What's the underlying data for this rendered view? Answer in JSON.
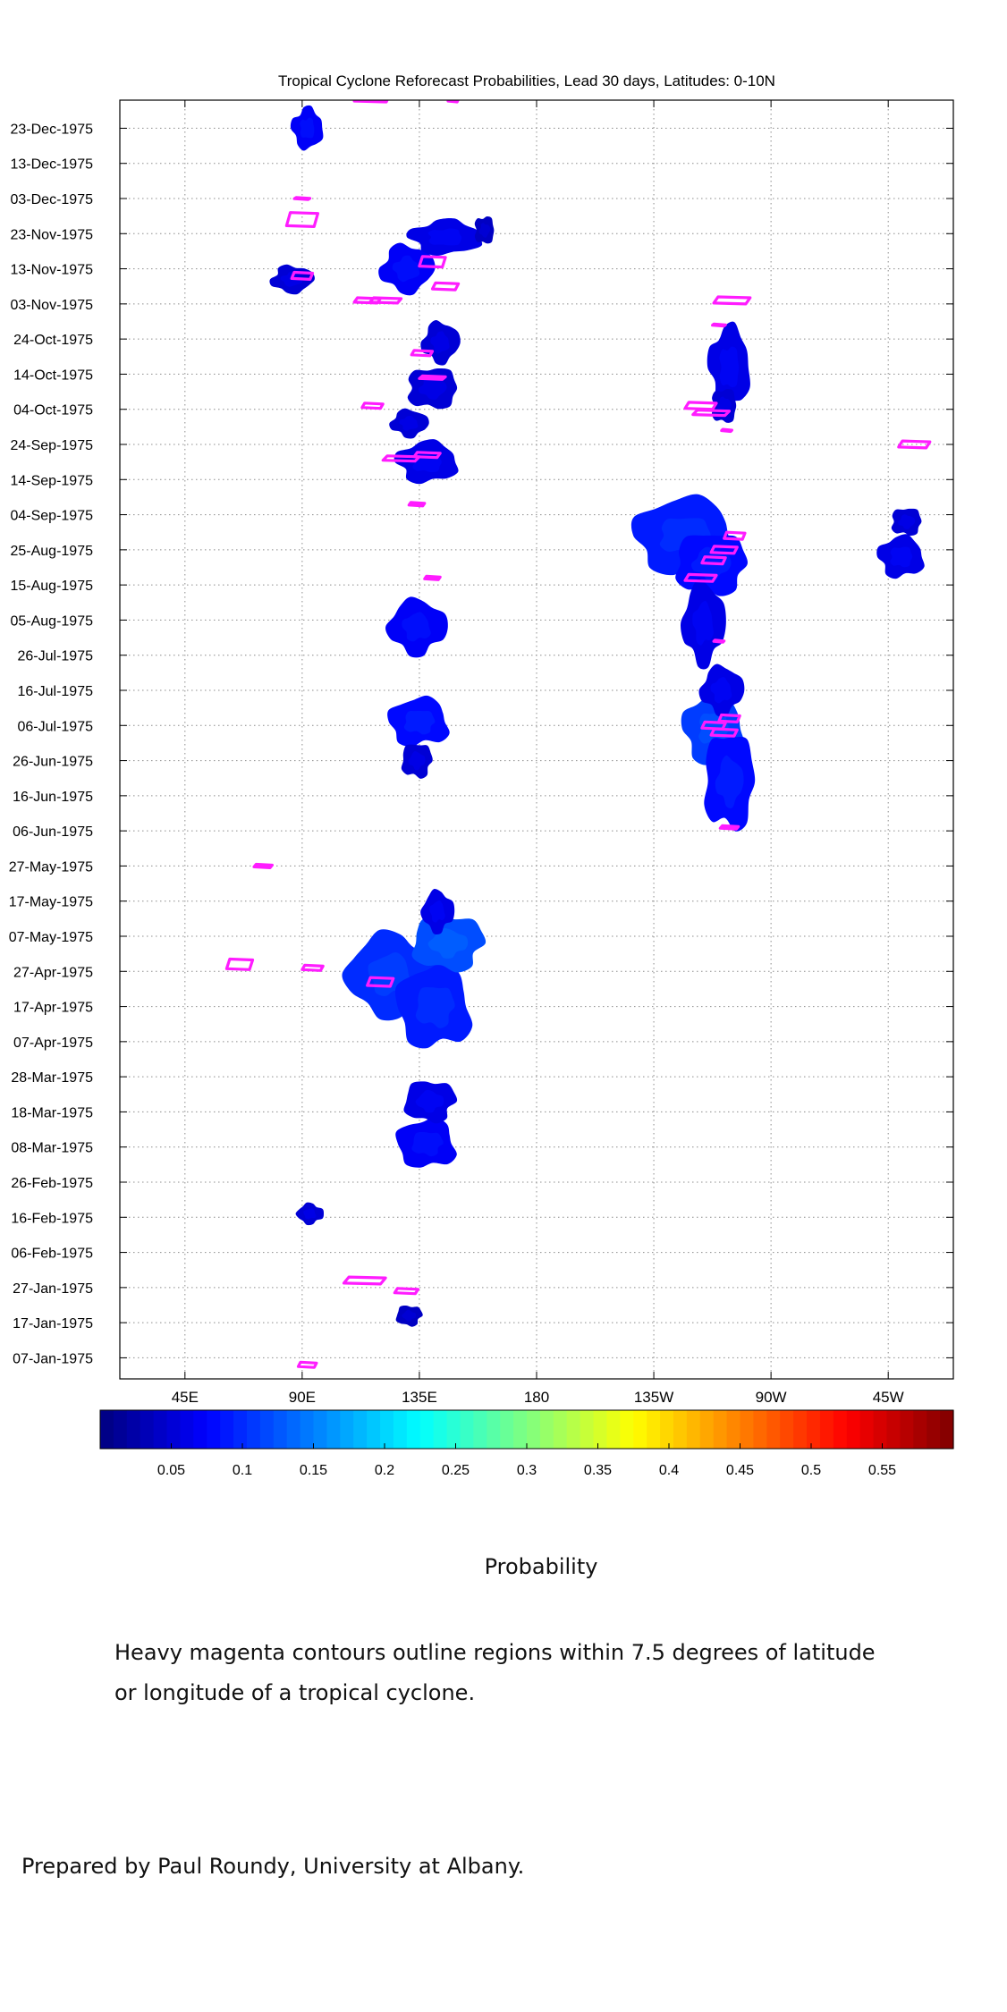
{
  "chart_data": {
    "type": "heatmap",
    "title": "Tropical Cyclone Reforecast Probabilities, Lead 30 days, Latitudes: 0-10N",
    "x_axis": {
      "quantity": "longitude",
      "range": [
        "20E",
        "20W"
      ],
      "tick_labels": [
        "45E",
        "90E",
        "135E",
        "180",
        "135W",
        "90W",
        "45W"
      ]
    },
    "y_axis": {
      "quantity": "date",
      "range": [
        "1975-01-01",
        "1975-12-31"
      ],
      "tick_labels": [
        "07-Jan-1975",
        "17-Jan-1975",
        "27-Jan-1975",
        "06-Feb-1975",
        "16-Feb-1975",
        "26-Feb-1975",
        "08-Mar-1975",
        "18-Mar-1975",
        "28-Mar-1975",
        "07-Apr-1975",
        "17-Apr-1975",
        "27-Apr-1975",
        "07-May-1975",
        "17-May-1975",
        "27-May-1975",
        "06-Jun-1975",
        "16-Jun-1975",
        "26-Jun-1975",
        "06-Jul-1975",
        "16-Jul-1975",
        "26-Jul-1975",
        "05-Aug-1975",
        "15-Aug-1975",
        "25-Aug-1975",
        "04-Sep-1975",
        "14-Sep-1975",
        "24-Sep-1975",
        "04-Oct-1975",
        "14-Oct-1975",
        "24-Oct-1975",
        "03-Nov-1975",
        "13-Nov-1975",
        "23-Nov-1975",
        "03-Dec-1975",
        "13-Dec-1975",
        "23-Dec-1975"
      ]
    },
    "grid": true,
    "colorbar": {
      "label": "Probability",
      "range": [
        0,
        0.6
      ],
      "tick_labels": [
        "0.05",
        "0.1",
        "0.15",
        "0.2",
        "0.25",
        "0.3",
        "0.35",
        "0.4",
        "0.45",
        "0.5",
        "0.55"
      ],
      "colormap": "jet"
    },
    "probability_regions": [
      {
        "lon": 131,
        "lat_day": 18,
        "d_lon": 5,
        "d_day": 3,
        "p": 0.04
      },
      {
        "lon": 93,
        "lat_day": 47,
        "d_lon": 5,
        "d_day": 3,
        "p": 0.05
      },
      {
        "lon": 138,
        "lat_day": 67,
        "d_lon": 12,
        "d_day": 7,
        "p": 0.07
      },
      {
        "lon": 139,
        "lat_day": 79,
        "d_lon": 10,
        "d_day": 6,
        "p": 0.06
      },
      {
        "lon": 124,
        "lat_day": 115,
        "d_lon": 17,
        "d_day": 12,
        "p": 0.1
      },
      {
        "lon": 141,
        "lat_day": 106,
        "d_lon": 15,
        "d_day": 12,
        "p": 0.09
      },
      {
        "lon": 146,
        "lat_day": 124,
        "d_lon": 14,
        "d_day": 8,
        "p": 0.12
      },
      {
        "lon": 142,
        "lat_day": 133,
        "d_lon": 6,
        "d_day": 6,
        "p": 0.06
      },
      {
        "lon": 135,
        "lat_day": 187,
        "d_lon": 12,
        "d_day": 7,
        "p": 0.08
      },
      {
        "lon": 134,
        "lat_day": 176,
        "d_lon": 6,
        "d_day": 5,
        "p": 0.05
      },
      {
        "lon": 134,
        "lat_day": 214,
        "d_lon": 11,
        "d_day": 8,
        "p": 0.07
      },
      {
        "lon": 237,
        "lat_day": 240,
        "d_lon": 20,
        "d_day": 11,
        "p": 0.09
      },
      {
        "lon": 247,
        "lat_day": 232,
        "d_lon": 14,
        "d_day": 9,
        "p": 0.08
      },
      {
        "lon": 244,
        "lat_day": 215,
        "d_lon": 8,
        "d_day": 12,
        "p": 0.06
      },
      {
        "lon": 248,
        "lat_day": 185,
        "d_lon": 12,
        "d_day": 10,
        "p": 0.11
      },
      {
        "lon": 254,
        "lat_day": 170,
        "d_lon": 10,
        "d_day": 14,
        "p": 0.08
      },
      {
        "lon": 251,
        "lat_day": 196,
        "d_lon": 8,
        "d_day": 7,
        "p": 0.06
      },
      {
        "lon": 320,
        "lat_day": 234,
        "d_lon": 9,
        "d_day": 6,
        "p": 0.06
      },
      {
        "lon": 322,
        "lat_day": 244,
        "d_lon": 6,
        "d_day": 4,
        "p": 0.05
      },
      {
        "lon": 131,
        "lat_day": 272,
        "d_lon": 7,
        "d_day": 4,
        "p": 0.05
      },
      {
        "lon": 138,
        "lat_day": 261,
        "d_lon": 12,
        "d_day": 6,
        "p": 0.06
      },
      {
        "lon": 140,
        "lat_day": 282,
        "d_lon": 10,
        "d_day": 6,
        "p": 0.05
      },
      {
        "lon": 143,
        "lat_day": 295,
        "d_lon": 7,
        "d_day": 6,
        "p": 0.05
      },
      {
        "lon": 254,
        "lat_day": 288,
        "d_lon": 8,
        "d_day": 12,
        "p": 0.06
      },
      {
        "lon": 252,
        "lat_day": 277,
        "d_lon": 5,
        "d_day": 5,
        "p": 0.05
      },
      {
        "lon": 130,
        "lat_day": 316,
        "d_lon": 10,
        "d_day": 7,
        "p": 0.07
      },
      {
        "lon": 145,
        "lat_day": 325,
        "d_lon": 14,
        "d_day": 5,
        "p": 0.06
      },
      {
        "lon": 160,
        "lat_day": 327,
        "d_lon": 4,
        "d_day": 4,
        "p": 0.04
      },
      {
        "lon": 86,
        "lat_day": 313,
        "d_lon": 8,
        "d_day": 4,
        "p": 0.05
      },
      {
        "lon": 92,
        "lat_day": 356,
        "d_lon": 6,
        "d_day": 6,
        "p": 0.07
      }
    ],
    "tc_contours": [
      {
        "lon": 92,
        "day": 4,
        "d_lon": 7,
        "d_day": 1.5
      },
      {
        "lon": 114,
        "day": 28,
        "d_lon": 16,
        "d_day": 2
      },
      {
        "lon": 130,
        "day": 25,
        "d_lon": 9,
        "d_day": 1.5
      },
      {
        "lon": 120,
        "day": 113,
        "d_lon": 10,
        "d_day": 2.5
      },
      {
        "lon": 94,
        "day": 117,
        "d_lon": 8,
        "d_day": 1.5
      },
      {
        "lon": 66,
        "day": 118,
        "d_lon": 10,
        "d_day": 3
      },
      {
        "lon": 75,
        "day": 146,
        "d_lon": 7,
        "d_day": 1
      },
      {
        "lon": 254,
        "day": 157,
        "d_lon": 7,
        "d_day": 1
      },
      {
        "lon": 252,
        "day": 184,
        "d_lon": 10,
        "d_day": 2
      },
      {
        "lon": 248,
        "day": 186,
        "d_lon": 9,
        "d_day": 2
      },
      {
        "lon": 254,
        "day": 188,
        "d_lon": 8,
        "d_day": 2
      },
      {
        "lon": 250,
        "day": 210,
        "d_lon": 4,
        "d_day": 0.6
      },
      {
        "lon": 140,
        "day": 228,
        "d_lon": 6,
        "d_day": 1
      },
      {
        "lon": 243,
        "day": 228,
        "d_lon": 12,
        "d_day": 2
      },
      {
        "lon": 252,
        "day": 236,
        "d_lon": 10,
        "d_day": 2
      },
      {
        "lon": 256,
        "day": 240,
        "d_lon": 8,
        "d_day": 2
      },
      {
        "lon": 248,
        "day": 233,
        "d_lon": 9,
        "d_day": 2
      },
      {
        "lon": 134,
        "day": 249,
        "d_lon": 6,
        "d_day": 1
      },
      {
        "lon": 128,
        "day": 262,
        "d_lon": 14,
        "d_day": 1.5
      },
      {
        "lon": 138,
        "day": 263,
        "d_lon": 10,
        "d_day": 1.5
      },
      {
        "lon": 325,
        "day": 266,
        "d_lon": 12,
        "d_day": 2
      },
      {
        "lon": 253,
        "day": 270,
        "d_lon": 4,
        "d_day": 0.6
      },
      {
        "lon": 243,
        "day": 277,
        "d_lon": 12,
        "d_day": 2
      },
      {
        "lon": 247,
        "day": 275,
        "d_lon": 14,
        "d_day": 1.5
      },
      {
        "lon": 117,
        "day": 277,
        "d_lon": 8,
        "d_day": 1.5
      },
      {
        "lon": 140,
        "day": 285,
        "d_lon": 10,
        "d_day": 1
      },
      {
        "lon": 136,
        "day": 292,
        "d_lon": 8,
        "d_day": 1.5
      },
      {
        "lon": 250,
        "day": 300,
        "d_lon": 5,
        "d_day": 0.6
      },
      {
        "lon": 115,
        "day": 307,
        "d_lon": 10,
        "d_day": 1.5
      },
      {
        "lon": 122,
        "day": 307,
        "d_lon": 12,
        "d_day": 1.5
      },
      {
        "lon": 255,
        "day": 307,
        "d_lon": 14,
        "d_day": 2
      },
      {
        "lon": 145,
        "day": 311,
        "d_lon": 10,
        "d_day": 2
      },
      {
        "lon": 90,
        "day": 314,
        "d_lon": 8,
        "d_day": 2
      },
      {
        "lon": 140,
        "day": 318,
        "d_lon": 10,
        "d_day": 3
      },
      {
        "lon": 90,
        "day": 330,
        "d_lon": 12,
        "d_day": 4
      },
      {
        "lon": 90,
        "day": 336,
        "d_lon": 6,
        "d_day": 0.6
      },
      {
        "lon": 117,
        "day": 365,
        "d_lon": 14,
        "d_day": 3
      },
      {
        "lon": 148,
        "day": 364,
        "d_lon": 4,
        "d_day": 1
      }
    ]
  },
  "note_lines": [
    "Heavy magenta contours outline regions within 7.5 degrees of latitude",
    "or longitude of a tropical cyclone."
  ],
  "credit": "Prepared by Paul Roundy, University at Albany.",
  "colors": {
    "contour": "#ff1cff",
    "gridline": "#8c8c8c",
    "axis": "#000000",
    "jet": [
      "#00008f",
      "#0000ff",
      "#0080ff",
      "#00ffff",
      "#80ff80",
      "#ffff00",
      "#ff8000",
      "#ff0000",
      "#800000"
    ]
  }
}
